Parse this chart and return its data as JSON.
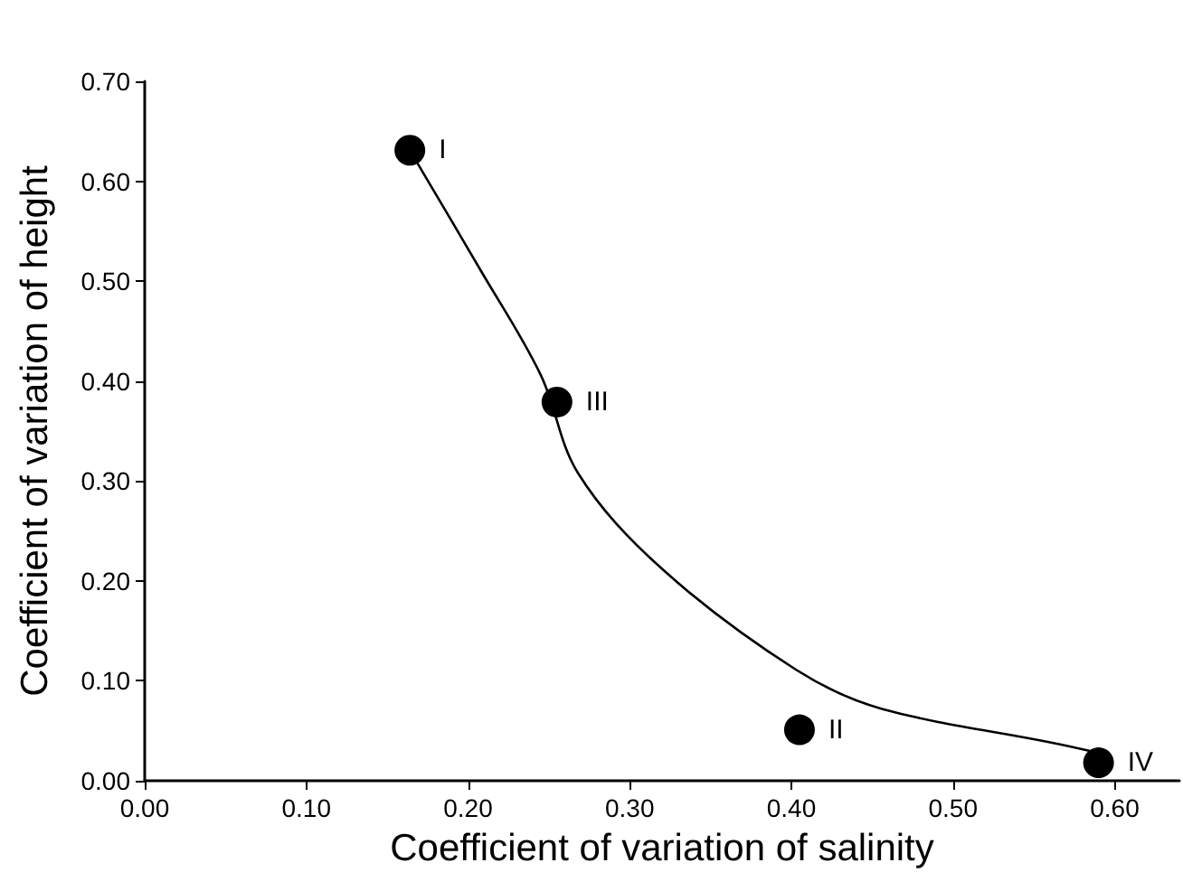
{
  "chart_data": {
    "type": "scatter",
    "xlabel": "Coefficient of variation of salinity",
    "ylabel": "Coefficient of variation of height",
    "xlim": [
      0,
      0.64
    ],
    "ylim": [
      0,
      0.7
    ],
    "xticks": [
      {
        "value": 0,
        "label": "0.00"
      },
      {
        "value": 0.1,
        "label": "0.10"
      },
      {
        "value": 0.2,
        "label": "0.20"
      },
      {
        "value": 0.3,
        "label": "0.30"
      },
      {
        "value": 0.4,
        "label": "0.40"
      },
      {
        "value": 0.5,
        "label": "0.50"
      },
      {
        "value": 0.6,
        "label": "0.60"
      }
    ],
    "yticks": [
      {
        "value": 0,
        "label": "0.00"
      },
      {
        "value": 0.1,
        "label": "0.10"
      },
      {
        "value": 0.2,
        "label": "0.20"
      },
      {
        "value": 0.3,
        "label": "0.30"
      },
      {
        "value": 0.4,
        "label": "0.40"
      },
      {
        "value": 0.5,
        "label": "0.50"
      },
      {
        "value": 0.6,
        "label": "0.60"
      },
      {
        "value": 0.7,
        "label": "0.70"
      }
    ],
    "grid": false,
    "marker": "circle",
    "series": [
      {
        "type": "line",
        "color": "#000000",
        "marker": "none",
        "line_style": "solid",
        "x": [
          0.164,
          0.207,
          0.245,
          0.268,
          0.32,
          0.403,
          0.456,
          0.584,
          0.59
        ],
        "values": [
          0.631,
          0.513,
          0.406,
          0.308,
          0.212,
          0.111,
          0.072,
          0.03,
          0.018
        ]
      },
      {
        "color": "#000000",
        "x": [
          0.164,
          0.405,
          0.255,
          0.59
        ],
        "values": [
          0.631,
          0.051,
          0.379,
          0.018
        ]
      }
    ],
    "annotations": [
      {
        "text": "I",
        "x": 0.164,
        "y": 0.631
      },
      {
        "text": "II",
        "x": 0.405,
        "y": 0.051
      },
      {
        "text": "III",
        "x": 0.255,
        "y": 0.379
      },
      {
        "text": "IV",
        "x": 0.59,
        "y": 0.018
      }
    ]
  }
}
